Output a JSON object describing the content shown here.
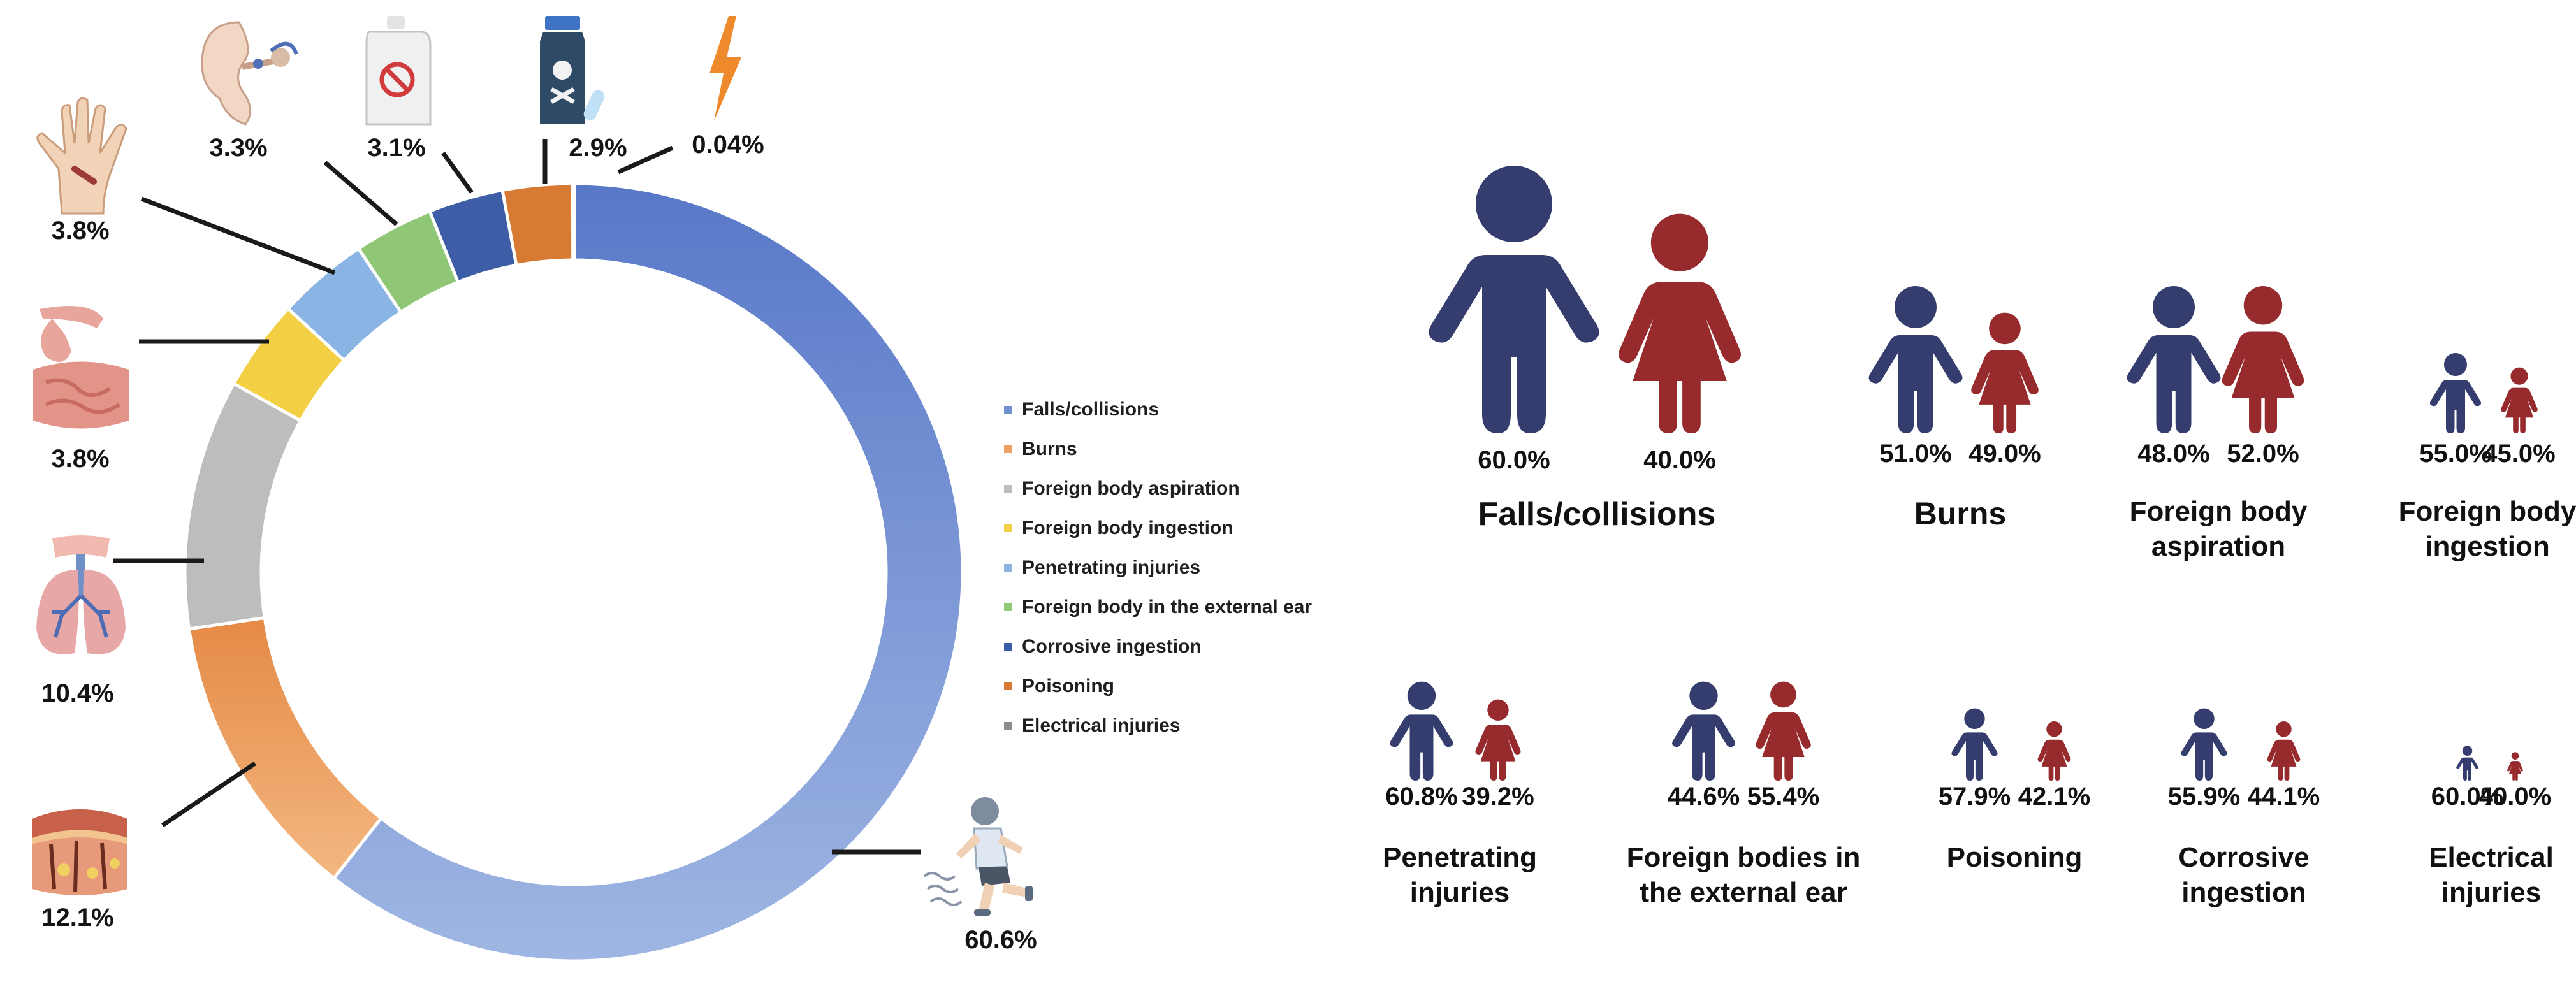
{
  "chart_data": [
    {
      "type": "pie",
      "subtype": "donut",
      "categories": [
        "Falls/collisions",
        "Burns",
        "Foreign body aspiration",
        "Foreign body ingestion",
        "Penetrating injuries",
        "Foreign body in the external ear",
        "Corrosive ingestion",
        "Poisoning",
        "Electrical injuries"
      ],
      "values": [
        60.6,
        12.1,
        10.4,
        3.8,
        3.8,
        3.3,
        3.1,
        2.9,
        0.04
      ],
      "value_labels": [
        "60.6%",
        "12.1%",
        "10.4%",
        "3.8%",
        "3.8%",
        "3.3%",
        "3.1%",
        "2.9%",
        "0.04%"
      ],
      "colors": [
        "#6f8fd0",
        "#ec9f5e",
        "#bdbdbd",
        "#f3cf43",
        "#8ab4e4",
        "#8fc777",
        "#3d5da6",
        "#d77a33",
        "#8c8c8c"
      ],
      "icons": [
        "running-child-icon",
        "skin-layers-icon",
        "lungs-icon",
        "digestive-tract-icon",
        "injured-hand-icon",
        "ear-anatomy-icon",
        "chemical-jug-icon",
        "poison-bottle-icon",
        "lightning-bolt-icon"
      ],
      "legend_position": "right"
    },
    {
      "type": "bar",
      "subtype": "pictogram",
      "series": [
        {
          "name": "male",
          "color": "#343d6e"
        },
        {
          "name": "female",
          "color": "#962a2c"
        }
      ],
      "groups": [
        {
          "title": "Falls/collisions",
          "male": 60.0,
          "female": 40.0,
          "male_label": "60.0%",
          "female_label": "40.0%"
        },
        {
          "title": "Burns",
          "male": 51.0,
          "female": 49.0,
          "male_label": "51.0%",
          "female_label": "49.0%"
        },
        {
          "title": "Foreign body aspiration",
          "male": 48.0,
          "female": 52.0,
          "male_label": "48.0%",
          "female_label": "52.0%"
        },
        {
          "title": "Foreign body ingestion",
          "male": 55.0,
          "female": 45.0,
          "male_label": "55.0%",
          "female_label": "45.0%"
        },
        {
          "title": "Penetrating injuries",
          "male": 60.8,
          "female": 39.2,
          "male_label": "60.8%",
          "female_label": "39.2%"
        },
        {
          "title": "Foreign bodies in the external ear",
          "male": 44.6,
          "female": 55.4,
          "male_label": "44.6%",
          "female_label": "55.4%"
        },
        {
          "title": "Poisoning",
          "male": 57.9,
          "female": 42.1,
          "male_label": "57.9%",
          "female_label": "42.1%"
        },
        {
          "title": "Corrosive ingestion",
          "male": 55.9,
          "female": 44.1,
          "male_label": "55.9%",
          "female_label": "44.1%"
        },
        {
          "title": "Electrical injuries",
          "male": 60.0,
          "female": 40.0,
          "male_label": "60.0%",
          "female_label": "40.0%"
        }
      ]
    }
  ]
}
